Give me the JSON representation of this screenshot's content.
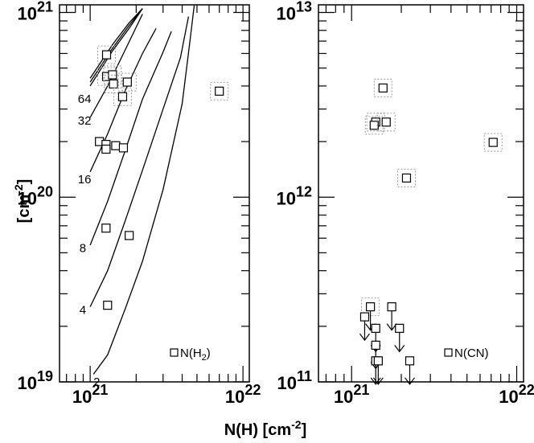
{
  "chart_data": [
    {
      "type": "scatter",
      "panel": "left",
      "xlabel": "N(H) [cm⁻²]",
      "ylabel": "[cm⁻²]",
      "xscale": "log",
      "yscale": "log",
      "xlim": [
        6.3e+20,
        1.1e+22
      ],
      "ylim": [
        1e+19,
        1.1e+21
      ],
      "x_ticks": [
        {
          "value": 1e+21,
          "base": "10",
          "exp": "21"
        },
        {
          "value": 1e+22,
          "base": "10",
          "exp": "22"
        }
      ],
      "y_ticks": [
        {
          "value": 1e+19,
          "base": "10",
          "exp": "19"
        },
        {
          "value": 1e+20,
          "base": "10",
          "exp": "20"
        },
        {
          "value": 1e+21,
          "base": "10",
          "exp": "21"
        }
      ],
      "legend": {
        "text_main": "N(H",
        "text_sub": "2",
        "text_end": ")",
        "placement": "bottom-right"
      },
      "series": [
        {
          "name": "N(H2)",
          "marker": "square",
          "points": [
            {
              "x": 1.28e+21,
              "y": 5.9e+20,
              "boxed": true
            },
            {
              "x": 1.28e+21,
              "y": 4.5e+20,
              "boxed": true
            },
            {
              "x": 1.4e+21,
              "y": 4.6e+20,
              "boxed": true
            },
            {
              "x": 1.42e+21,
              "y": 4.1e+20,
              "boxed": true
            },
            {
              "x": 1.75e+21,
              "y": 4.2e+20,
              "boxed": true
            },
            {
              "x": 1.63e+21,
              "y": 3.5e+20,
              "boxed": true
            },
            {
              "x": 7e+21,
              "y": 3.75e+20,
              "boxed": true
            },
            {
              "x": 1.15e+21,
              "y": 2e+20,
              "boxed": false
            },
            {
              "x": 1.27e+21,
              "y": 1.93e+20,
              "boxed": false
            },
            {
              "x": 1.27e+21,
              "y": 1.82e+20,
              "boxed": false
            },
            {
              "x": 1.47e+21,
              "y": 1.9e+20,
              "boxed": false
            },
            {
              "x": 1.65e+21,
              "y": 1.85e+20,
              "boxed": false
            },
            {
              "x": 1.27e+21,
              "y": 6.8e+19,
              "boxed": false
            },
            {
              "x": 1.8e+21,
              "y": 6.2e+19,
              "boxed": false
            },
            {
              "x": 1.3e+21,
              "y": 2.6e+19,
              "boxed": false
            }
          ]
        },
        {
          "name": "64",
          "type": "line",
          "label_point": {
            "x": 8.3e+20,
            "y": 3.4e+20
          },
          "points": [
            {
              "x": 1e+21,
              "y": 4e+20
            },
            {
              "x": 1.4e+21,
              "y": 6.2e+20
            },
            {
              "x": 1.8e+21,
              "y": 8.2e+20
            },
            {
              "x": 2.2e+21,
              "y": 1.05e+21
            }
          ]
        },
        {
          "name": "",
          "type": "line",
          "points": [
            {
              "x": 1e+21,
              "y": 4.2e+20
            },
            {
              "x": 1.4e+21,
              "y": 6.4e+20
            },
            {
              "x": 1.8e+21,
              "y": 8.5e+20
            },
            {
              "x": 2.2e+21,
              "y": 1.05e+21
            }
          ]
        },
        {
          "name": "",
          "type": "line",
          "points": [
            {
              "x": 1e+21,
              "y": 4.4e+20
            },
            {
              "x": 1.4e+21,
              "y": 6.7e+20
            },
            {
              "x": 1.8e+21,
              "y": 8.8e+20
            },
            {
              "x": 2.2e+21,
              "y": 1.05e+21
            }
          ]
        },
        {
          "name": "32",
          "type": "line",
          "label_point": {
            "x": 8.3e+20,
            "y": 2.6e+20
          },
          "points": [
            {
              "x": 1e+21,
              "y": 2.7e+20
            },
            {
              "x": 1.3e+21,
              "y": 4e+20
            },
            {
              "x": 1.7e+21,
              "y": 6.3e+20
            },
            {
              "x": 2.2e+21,
              "y": 9.8e+20
            }
          ]
        },
        {
          "name": "16",
          "type": "line",
          "label_point": {
            "x": 8.3e+20,
            "y": 1.25e+20
          },
          "points": [
            {
              "x": 1e+21,
              "y": 1.37e+20
            },
            {
              "x": 1.3e+21,
              "y": 2.2e+20
            },
            {
              "x": 1.7e+21,
              "y": 3.8e+20
            },
            {
              "x": 2.2e+21,
              "y": 6e+20
            },
            {
              "x": 2.7e+21,
              "y": 8.2e+20
            }
          ]
        },
        {
          "name": "8",
          "type": "line",
          "label_point": {
            "x": 8.5e+20,
            "y": 5.3e+19
          },
          "points": [
            {
              "x": 1e+21,
              "y": 5.5e+19
            },
            {
              "x": 1.3e+21,
              "y": 9.5e+19
            },
            {
              "x": 1.7e+21,
              "y": 1.8e+20
            },
            {
              "x": 2.2e+21,
              "y": 3.4e+20
            },
            {
              "x": 3e+21,
              "y": 6.1e+20
            },
            {
              "x": 3.4e+21,
              "y": 7.9e+20
            }
          ]
        },
        {
          "name": "4",
          "type": "line",
          "label_point": {
            "x": 8.5e+20,
            "y": 2.45e+19
          },
          "points": [
            {
              "x": 1e+21,
              "y": 2.55e+19
            },
            {
              "x": 1.3e+21,
              "y": 4e+19
            },
            {
              "x": 1.7e+21,
              "y": 7.5e+19
            },
            {
              "x": 2.2e+21,
              "y": 1.4e+20
            },
            {
              "x": 3e+21,
              "y": 3e+20
            },
            {
              "x": 3.9e+21,
              "y": 5.7e+20
            },
            {
              "x": 4.4e+21,
              "y": 9.5e+20
            }
          ]
        },
        {
          "name": "2",
          "type": "line",
          "label_point": {
            "x": 1.05e+21,
            "y": 1e+19
          },
          "points": [
            {
              "x": 1.05e+21,
              "y": 1.1e+19
            },
            {
              "x": 1.3e+21,
              "y": 1.4e+19
            },
            {
              "x": 1.7e+21,
              "y": 2.5e+19
            },
            {
              "x": 2.2e+21,
              "y": 4.5e+19
            },
            {
              "x": 3e+21,
              "y": 1.1e+20
            },
            {
              "x": 4e+21,
              "y": 3.2e+20
            },
            {
              "x": 4.5e+21,
              "y": 7e+20
            },
            {
              "x": 4.8e+21,
              "y": 1.1e+21
            }
          ]
        }
      ]
    },
    {
      "type": "scatter",
      "panel": "right",
      "xlabel": "N(H) [cm⁻²]",
      "xscale": "log",
      "yscale": "log",
      "xlim": [
        6.3e+20,
        1.1e+22
      ],
      "ylim": [
        100000000000.0,
        11000000000000.0
      ],
      "x_ticks": [
        {
          "value": 1e+21,
          "base": "10",
          "exp": "21"
        },
        {
          "value": 1e+22,
          "base": "10",
          "exp": "22"
        }
      ],
      "y_ticks": [
        {
          "value": 100000000000.0,
          "base": "10",
          "exp": "11"
        },
        {
          "value": 1000000000000.0,
          "base": "10",
          "exp": "12"
        },
        {
          "value": 10000000000000.0,
          "base": "10",
          "exp": "13"
        }
      ],
      "legend": {
        "text_main": "N(CN)",
        "text_sub": "",
        "text_end": "",
        "placement": "bottom-right"
      },
      "series": [
        {
          "name": "N(CN)",
          "marker": "square",
          "points": [
            {
              "x": 1.55e+21,
              "y": 3900000000000.0,
              "boxed": true,
              "upper_limit": false
            },
            {
              "x": 1.4e+21,
              "y": 2550000000000.0,
              "boxed": true,
              "upper_limit": false
            },
            {
              "x": 1.37e+21,
              "y": 2450000000000.0,
              "boxed": true,
              "upper_limit": false
            },
            {
              "x": 1.62e+21,
              "y": 2550000000000.0,
              "boxed": true,
              "upper_limit": false
            },
            {
              "x": 7.2e+21,
              "y": 1980000000000.0,
              "boxed": true,
              "upper_limit": false
            },
            {
              "x": 2.15e+21,
              "y": 1270000000000.0,
              "boxed": true,
              "upper_limit": false
            },
            {
              "x": 1.3e+21,
              "y": 255000000000.0,
              "boxed": true,
              "upper_limit": true
            },
            {
              "x": 1.2e+21,
              "y": 225000000000.0,
              "boxed": false,
              "upper_limit": true
            },
            {
              "x": 1.75e+21,
              "y": 255000000000.0,
              "boxed": false,
              "upper_limit": true
            },
            {
              "x": 1.4e+21,
              "y": 195000000000.0,
              "boxed": false,
              "upper_limit": true
            },
            {
              "x": 1.95e+21,
              "y": 195000000000.0,
              "boxed": false,
              "upper_limit": true
            },
            {
              "x": 1.4e+21,
              "y": 158000000000.0,
              "boxed": false,
              "upper_limit": true
            },
            {
              "x": 1.4e+21,
              "y": 130000000000.0,
              "boxed": false,
              "upper_limit": true
            },
            {
              "x": 1.45e+21,
              "y": 130000000000.0,
              "boxed": false,
              "upper_limit": true
            },
            {
              "x": 2.25e+21,
              "y": 130000000000.0,
              "boxed": false,
              "upper_limit": true
            }
          ]
        }
      ]
    }
  ],
  "figure": {
    "xlabel_main": "N(H) [cm",
    "xlabel_sup": "-2",
    "xlabel_end": "]",
    "ylabel_main": "[cm",
    "ylabel_sup": "-2",
    "ylabel_end": "]"
  }
}
